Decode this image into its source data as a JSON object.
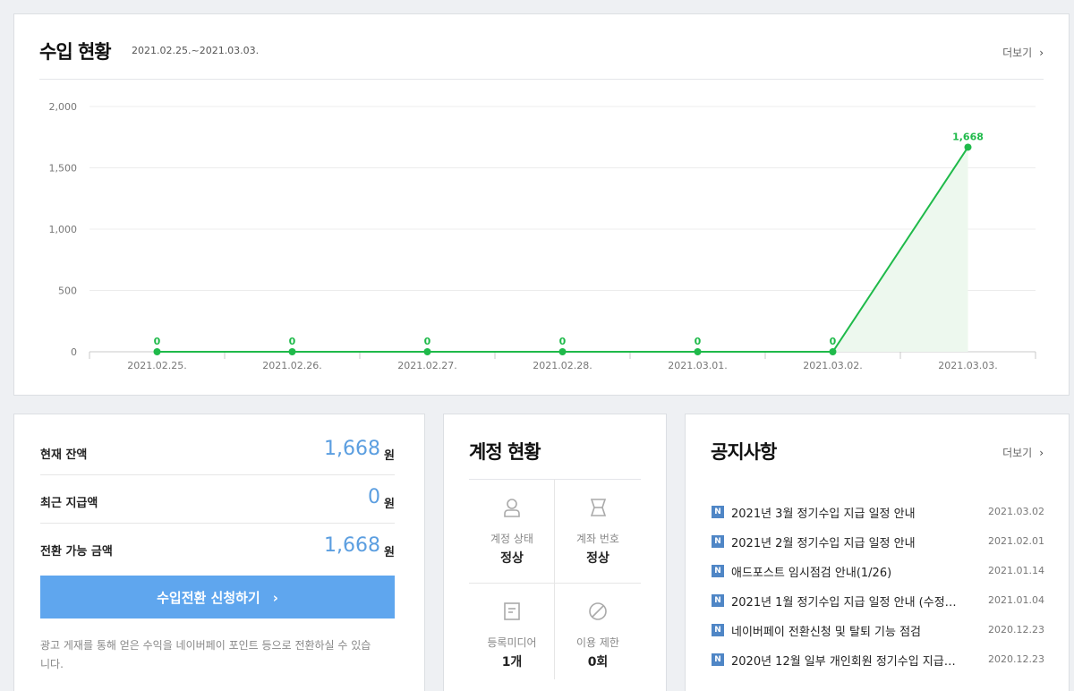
{
  "income": {
    "title": "수입 현황",
    "range": "2021.02.25.~2021.03.03.",
    "more": "더보기"
  },
  "chart_data": {
    "type": "area",
    "categories": [
      "2021.02.25.",
      "2021.02.26.",
      "2021.02.27.",
      "2021.02.28.",
      "2021.03.01.",
      "2021.03.02.",
      "2021.03.03."
    ],
    "values": [
      0,
      0,
      0,
      0,
      0,
      0,
      1668
    ],
    "data_labels": [
      "0",
      "0",
      "0",
      "0",
      "0",
      "0",
      "1,668"
    ],
    "y_ticks": [
      "0",
      "500",
      "1,000",
      "1,500",
      "2,000"
    ],
    "ylim": [
      0,
      2000
    ],
    "grid": true,
    "color": "#1fba4a",
    "fill": "#edf8ee"
  },
  "balance": {
    "rows": [
      {
        "label": "현재 잔액",
        "value": "1,668",
        "unit": "원"
      },
      {
        "label": "최근 지급액",
        "value": "0",
        "unit": "원"
      },
      {
        "label": "전환 가능 금액",
        "value": "1,668",
        "unit": "원"
      }
    ],
    "button": "수입전환 신청하기",
    "note": "광고 게재를 통해 얻은 수익을 네이버페이 포인트 등으로 전환하실 수 있습니다."
  },
  "account": {
    "title": "계정 현황",
    "cells": [
      {
        "icon": "user-icon",
        "label": "계정 상태",
        "value": "정상"
      },
      {
        "icon": "account-number-icon",
        "label": "계좌 번호",
        "value": "정상"
      },
      {
        "icon": "document-icon",
        "label": "등록미디어",
        "value": "1개"
      },
      {
        "icon": "block-icon",
        "label": "이용 제한",
        "value": "0회"
      }
    ]
  },
  "notice": {
    "title": "공지사항",
    "more": "더보기",
    "badge": "N",
    "items": [
      {
        "title": "2021년 3월 정기수입 지급 일정 안내",
        "date": "2021.03.02"
      },
      {
        "title": "2021년 2월 정기수입 지급 일정 안내",
        "date": "2021.02.01"
      },
      {
        "title": "애드포스트 임시점검 안내(1/26)",
        "date": "2021.01.14"
      },
      {
        "title": "2021년 1월 정기수입 지급 일정 안내 (수정…",
        "date": "2021.01.04"
      },
      {
        "title": "네이버페이 전환신청 및 탈퇴 기능 점검",
        "date": "2020.12.23"
      },
      {
        "title": "2020년 12월 일부 개인회원 정기수입 지급…",
        "date": "2020.12.23"
      }
    ]
  },
  "colors": {
    "accent": "#5fa6ee",
    "value_blue": "#5b9ee0",
    "chart_green": "#1fba4a",
    "badge_blue": "#4f86c6"
  }
}
